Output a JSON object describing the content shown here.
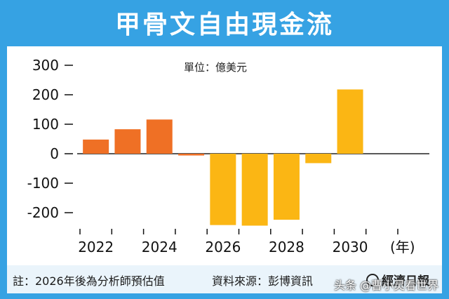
{
  "chart_title": "甲骨文自由現金流",
  "unit_label": "單位：億美元",
  "year_suffix": "(年)",
  "footnote": "註：2026年後為分析師預估值",
  "source": "資料來源：彭博資訊",
  "publisher": "經濟日報",
  "watermark": "头条 @曹小灵看世界",
  "colors": {
    "frame": "#36a2e3",
    "actual": "#ef7025",
    "estimate": "#fbb614"
  },
  "chart_data": {
    "type": "bar",
    "title": "甲骨文自由現金流",
    "ylabel": "單位：億美元",
    "xlabel": "(年)",
    "ylim": [
      -260,
      320
    ],
    "yticks": [
      300,
      200,
      100,
      0,
      -100,
      -200
    ],
    "xtick_labels": [
      "2022",
      "2024",
      "2026",
      "2028",
      "2030"
    ],
    "categories": [
      "2022",
      "2023",
      "2024",
      "2025",
      "2026",
      "2027",
      "2028",
      "2029",
      "2030"
    ],
    "values": [
      48,
      83,
      116,
      -6,
      -242,
      -244,
      -224,
      -32,
      218
    ],
    "status": [
      "actual",
      "actual",
      "actual",
      "actual",
      "estimate",
      "estimate",
      "estimate",
      "estimate",
      "estimate"
    ]
  }
}
